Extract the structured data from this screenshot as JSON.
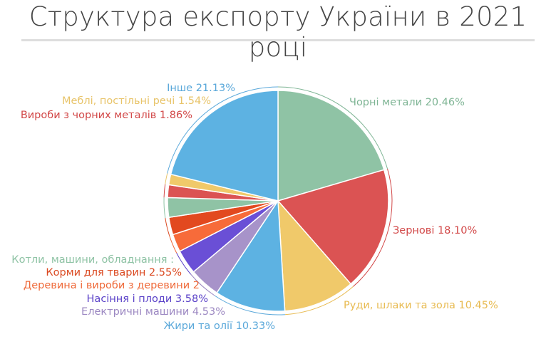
{
  "chart_data": {
    "type": "pie",
    "title": "Структура експорту України в 2021 році",
    "slices": [
      {
        "label": "Чорні метали 20.46%",
        "value": 20.46,
        "color": "#8fc3a5",
        "label_color": "#7fb595"
      },
      {
        "label": "Зернові 18.10%",
        "value": 18.1,
        "color": "#db5353",
        "label_color": "#d24848"
      },
      {
        "label": "Руди, шлаки та зола 10.45%",
        "value": 10.45,
        "color": "#f0c96a",
        "label_color": "#e8bb52"
      },
      {
        "label": "Жири та олії 10.33%",
        "value": 10.33,
        "color": "#5db2e2",
        "label_color": "#5aa8da"
      },
      {
        "label": "Електричні машини 4.53%",
        "value": 4.53,
        "color": "#a793c9",
        "label_color": "#9c88c2"
      },
      {
        "label": "Насіння і плоди 3.58%",
        "value": 3.58,
        "color": "#6a4fd6",
        "label_color": "#5a41c8"
      },
      {
        "label": "Деревина і вироби з деревини 2",
        "value": 2.6,
        "color": "#f76b3a",
        "label_color": "#ef6a3a"
      },
      {
        "label": "Корми для тварин 2.55%",
        "value": 2.55,
        "color": "#e2491f",
        "label_color": "#db4a22"
      },
      {
        "label": "Котли, машини, обладнання :",
        "value": 2.87,
        "color": "#8fc3a5",
        "label_color": "#8fc3a5"
      },
      {
        "label": "Вироби з чорних металів 1.86%",
        "value": 1.86,
        "color": "#db5353",
        "label_color": "#d24848"
      },
      {
        "label": "Меблі, постільні речі 1.54%",
        "value": 1.54,
        "color": "#f0c96a",
        "label_color": "#e8c46a"
      },
      {
        "label": "Інше 21.13%",
        "value": 21.13,
        "color": "#5db2e2",
        "label_color": "#5aa8da"
      }
    ]
  }
}
